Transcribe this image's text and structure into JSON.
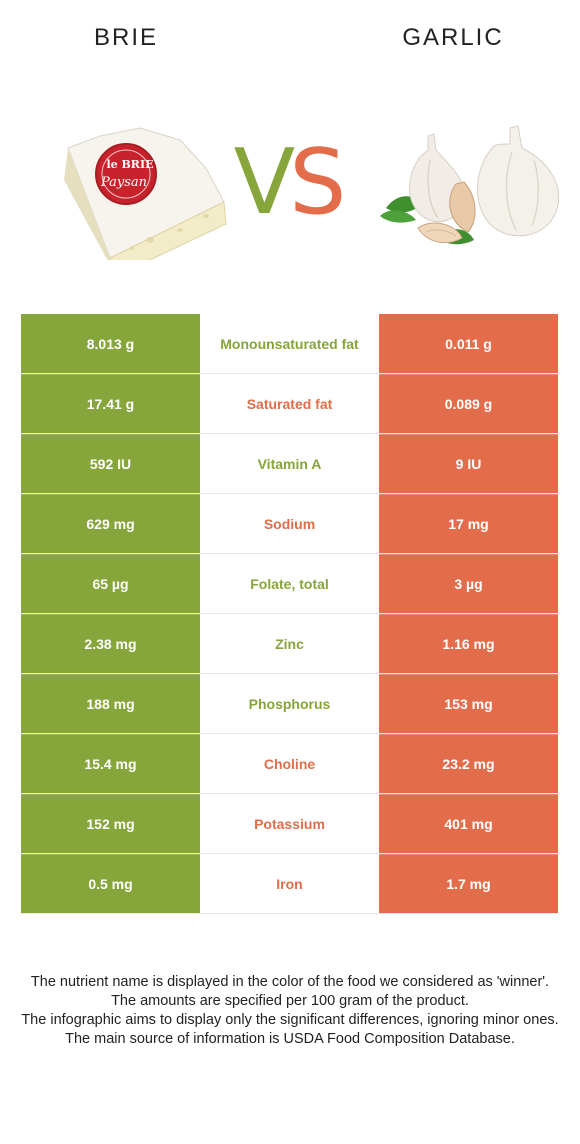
{
  "header": {
    "left_food": "BRIE",
    "right_food": "GARLIC",
    "vs_v": "V",
    "vs_s": "S"
  },
  "colors": {
    "left_accent": "#86a53a",
    "right_accent": "#e36c4b"
  },
  "brie_label": {
    "line1": "le BRIE",
    "line2": "Paysan"
  },
  "rows": [
    {
      "left": "8.013 g",
      "nutrient": "Monounsaturated fat",
      "right": "0.011 g",
      "winner": "left"
    },
    {
      "left": "17.41 g",
      "nutrient": "Saturated fat",
      "right": "0.089 g",
      "winner": "right"
    },
    {
      "left": "592 IU",
      "nutrient": "Vitamin A",
      "right": "9 IU",
      "winner": "left"
    },
    {
      "left": "629 mg",
      "nutrient": "Sodium",
      "right": "17 mg",
      "winner": "right"
    },
    {
      "left": "65 µg",
      "nutrient": "Folate, total",
      "right": "3 µg",
      "winner": "left"
    },
    {
      "left": "2.38 mg",
      "nutrient": "Zinc",
      "right": "1.16 mg",
      "winner": "left"
    },
    {
      "left": "188 mg",
      "nutrient": "Phosphorus",
      "right": "153 mg",
      "winner": "left"
    },
    {
      "left": "15.4 mg",
      "nutrient": "Choline",
      "right": "23.2 mg",
      "winner": "right"
    },
    {
      "left": "152 mg",
      "nutrient": "Potassium",
      "right": "401 mg",
      "winner": "right"
    },
    {
      "left": "0.5 mg",
      "nutrient": "Iron",
      "right": "1.7 mg",
      "winner": "right"
    }
  ],
  "footer": {
    "line1": "The nutrient name is displayed in the color of the food we considered as 'winner'.",
    "line2": "The amounts are specified per 100 gram of the product.",
    "line3": "The infographic aims to display only the significant differences, ignoring minor ones.",
    "line4": "The main source of information is USDA Food Composition Database."
  }
}
